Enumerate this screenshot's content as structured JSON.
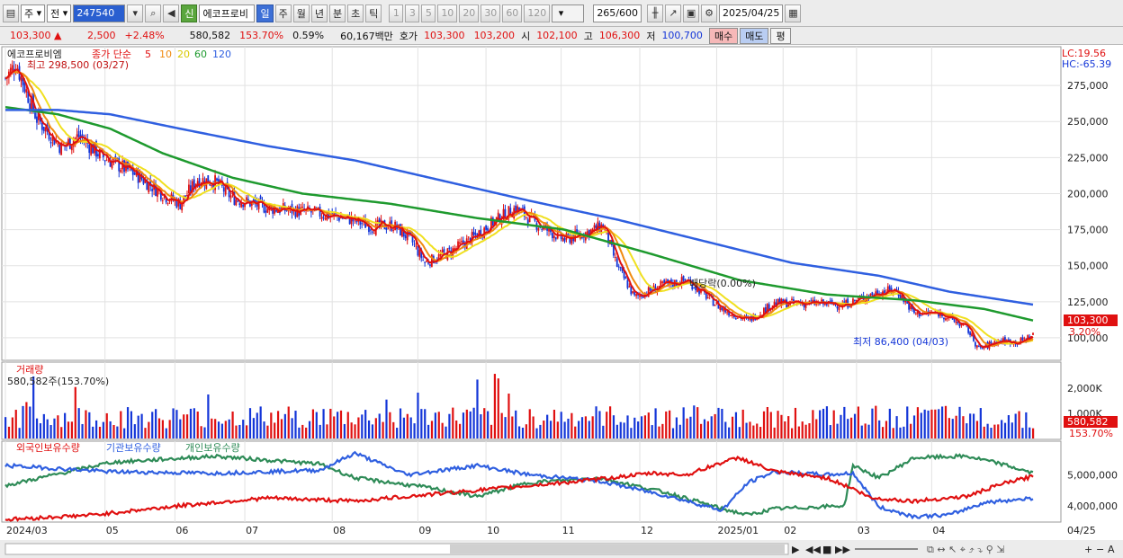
{
  "toolbar": {
    "period_selected": "주",
    "chart_kind": "전",
    "stock_code": "247540",
    "new_badge": "신",
    "stock_name": "에코프로비",
    "periods": [
      "일",
      "주",
      "월",
      "년",
      "분",
      "초",
      "틱"
    ],
    "minute_values": [
      "1",
      "3",
      "5",
      "10",
      "20",
      "30",
      "60",
      "120"
    ],
    "count": "265",
    "count_total": "/600",
    "date": "2025/04/25"
  },
  "info": {
    "price": "103,300",
    "change": "2,500",
    "change_pct": "+2.48%",
    "volume": "580,582",
    "volume_ratio": "153.70%",
    "turnover": "0.59%",
    "amount": "60,167백만",
    "quote_label": "호가",
    "ask": "103,300",
    "bid": "103,200",
    "open_label": "시",
    "open": "102,100",
    "high_label": "고",
    "high": "106,300",
    "low_label": "저",
    "low": "100,700",
    "buy_label": "매수",
    "sell_label": "매도",
    "avg_label": "평"
  },
  "colors": {
    "up": "#e01010",
    "down": "#1436d8",
    "ma5": "#e01010",
    "ma10": "#f08a10",
    "ma20": "#f0e020",
    "ma60": "#1e9a2e",
    "ma120": "#2f5fe0",
    "foreign": "#e01010",
    "institution": "#2f5fe0",
    "individual": "#2e8b57"
  },
  "chart_data": {
    "type": "candlestick",
    "price_panel": {
      "stock_name": "에코프로비엠",
      "legend": [
        "종가 단순",
        "5",
        "10",
        "20",
        "60",
        "120"
      ],
      "high_label": "최고 298,500 (03/27)",
      "low_label": "최저 86,400 (04/03)",
      "dividend_label": "배당락(0.00%)",
      "lc": "LC:19.56",
      "hc": "HC:-65.39",
      "current_price": "103,300",
      "current_pct": "3.20%",
      "yticks": [
        "275,000",
        "250,000",
        "225,000",
        "200,000",
        "175,000",
        "150,000",
        "125,000",
        "100,000"
      ],
      "ylim": [
        85000,
        300000
      ],
      "anchors": [
        [
          0,
          280000
        ],
        [
          6,
          290000
        ],
        [
          18,
          252000
        ],
        [
          32,
          232000
        ],
        [
          42,
          240000
        ],
        [
          55,
          226000
        ],
        [
          75,
          213000
        ],
        [
          92,
          198000
        ],
        [
          100,
          193000
        ],
        [
          110,
          210000
        ],
        [
          120,
          208000
        ],
        [
          130,
          197000
        ],
        [
          150,
          190000
        ],
        [
          175,
          187000
        ],
        [
          195,
          183000
        ],
        [
          210,
          177000
        ],
        [
          222,
          178000
        ],
        [
          232,
          168000
        ],
        [
          240,
          152000
        ],
        [
          255,
          160000
        ],
        [
          268,
          170000
        ],
        [
          280,
          181000
        ],
        [
          292,
          190000
        ],
        [
          305,
          178000
        ],
        [
          320,
          168000
        ],
        [
          335,
          174000
        ],
        [
          342,
          178000
        ],
        [
          350,
          150000
        ],
        [
          360,
          128000
        ],
        [
          375,
          136000
        ],
        [
          390,
          140000
        ],
        [
          410,
          120000
        ],
        [
          425,
          112000
        ],
        [
          440,
          124000
        ],
        [
          460,
          124000
        ],
        [
          480,
          123000
        ],
        [
          500,
          132000
        ],
        [
          510,
          133000
        ],
        [
          520,
          117000
        ],
        [
          535,
          117000
        ],
        [
          550,
          107000
        ],
        [
          557,
          92000
        ],
        [
          568,
          98000
        ],
        [
          580,
          97000
        ],
        [
          588,
          102000
        ]
      ],
      "ma120": [
        [
          0,
          258000
        ],
        [
          30,
          258000
        ],
        [
          60,
          255000
        ],
        [
          100,
          245000
        ],
        [
          150,
          233000
        ],
        [
          200,
          223000
        ],
        [
          250,
          209000
        ],
        [
          300,
          195000
        ],
        [
          350,
          182000
        ],
        [
          400,
          167000
        ],
        [
          450,
          152000
        ],
        [
          500,
          143000
        ],
        [
          540,
          132000
        ],
        [
          588,
          123000
        ]
      ],
      "ma60": [
        [
          0,
          260000
        ],
        [
          30,
          255000
        ],
        [
          60,
          245000
        ],
        [
          90,
          228000
        ],
        [
          130,
          211000
        ],
        [
          170,
          200000
        ],
        [
          220,
          193000
        ],
        [
          270,
          183000
        ],
        [
          320,
          175000
        ],
        [
          370,
          158000
        ],
        [
          420,
          140000
        ],
        [
          470,
          130000
        ],
        [
          520,
          126000
        ],
        [
          560,
          120000
        ],
        [
          588,
          112000
        ]
      ]
    },
    "volume_panel": {
      "title": "거래량",
      "value_label": "580,582주(153.70%)",
      "yticks": [
        "2,000K",
        "1,000K"
      ],
      "ylim": [
        0,
        3000000
      ],
      "current": "580,582",
      "current_pct": "153.70%"
    },
    "holdings_panel": {
      "legend": [
        "외국인보유수량",
        "기관보유수량",
        "개인보유수량"
      ],
      "yticks": [
        "5,000,000",
        "4,000,000"
      ],
      "ylim": [
        3500000,
        6000000
      ],
      "foreign": [
        [
          0,
          3550000
        ],
        [
          50,
          3700000
        ],
        [
          100,
          4000000
        ],
        [
          150,
          4250000
        ],
        [
          200,
          4150000
        ],
        [
          230,
          4300000
        ],
        [
          260,
          4450000
        ],
        [
          300,
          4650000
        ],
        [
          330,
          4800000
        ],
        [
          370,
          5050000
        ],
        [
          390,
          5000000
        ],
        [
          410,
          5400000
        ],
        [
          420,
          5550000
        ],
        [
          440,
          5100000
        ],
        [
          470,
          4900000
        ],
        [
          485,
          4550000
        ],
        [
          495,
          4250000
        ],
        [
          520,
          4150000
        ],
        [
          550,
          4300000
        ],
        [
          570,
          4700000
        ],
        [
          588,
          4950000
        ]
      ],
      "institution": [
        [
          0,
          5300000
        ],
        [
          60,
          5100000
        ],
        [
          120,
          5050000
        ],
        [
          180,
          5150000
        ],
        [
          200,
          5700000
        ],
        [
          230,
          5000000
        ],
        [
          270,
          5300000
        ],
        [
          300,
          5000000
        ],
        [
          340,
          4800000
        ],
        [
          380,
          4300000
        ],
        [
          410,
          3850000
        ],
        [
          425,
          4750000
        ],
        [
          440,
          5100000
        ],
        [
          470,
          5000000
        ],
        [
          485,
          5050000
        ],
        [
          500,
          3950000
        ],
        [
          520,
          3650000
        ],
        [
          540,
          3700000
        ],
        [
          560,
          4100000
        ],
        [
          588,
          4250000
        ]
      ],
      "individual": [
        [
          0,
          4650000
        ],
        [
          60,
          5400000
        ],
        [
          120,
          5600000
        ],
        [
          180,
          5350000
        ],
        [
          200,
          4900000
        ],
        [
          240,
          4600000
        ],
        [
          270,
          4300000
        ],
        [
          300,
          4750000
        ],
        [
          340,
          4900000
        ],
        [
          380,
          4400000
        ],
        [
          410,
          3900000
        ],
        [
          425,
          3700000
        ],
        [
          440,
          3900000
        ],
        [
          480,
          4000000
        ],
        [
          485,
          5300000
        ],
        [
          500,
          4900000
        ],
        [
          520,
          5550000
        ],
        [
          550,
          5600000
        ],
        [
          570,
          5350000
        ],
        [
          588,
          5050000
        ]
      ]
    },
    "x_axis": {
      "labels": [
        "2024/03",
        "05",
        "06",
        "07",
        "08",
        "09",
        "10",
        "11",
        "12",
        "2025/01",
        "02",
        "03",
        "04"
      ],
      "label_index": [
        0,
        57,
        97,
        137,
        187,
        236,
        275,
        318,
        363,
        407,
        445,
        487,
        530
      ],
      "right_label": "04/25",
      "n": 589
    }
  }
}
